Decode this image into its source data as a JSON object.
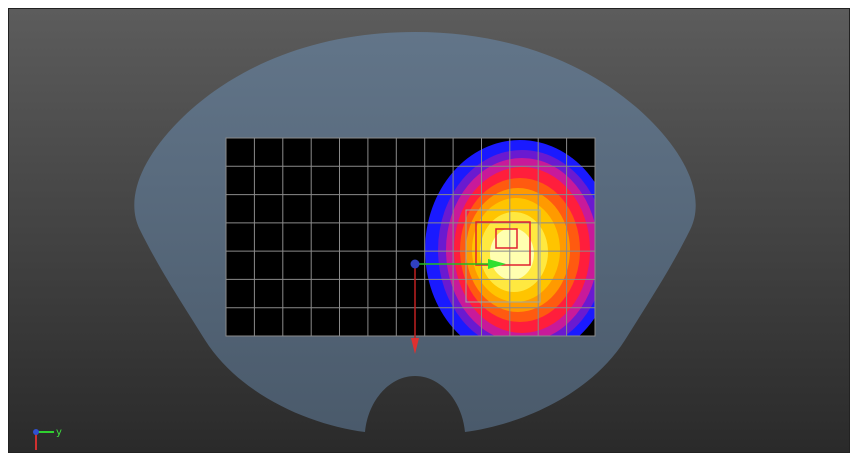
{
  "viewport": {
    "axis_triad": {
      "label": "y"
    }
  }
}
